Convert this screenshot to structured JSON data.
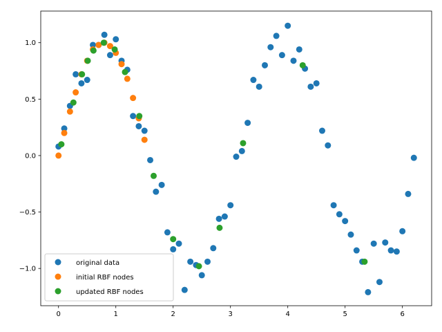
{
  "chart_data": {
    "type": "scatter",
    "title": "",
    "xlabel": "",
    "ylabel": "",
    "xlim": [
      -0.31,
      6.51
    ],
    "ylim": [
      -1.33,
      1.28
    ],
    "xticks": [
      0,
      1,
      2,
      3,
      4,
      5,
      6
    ],
    "xtick_labels": [
      "0",
      "1",
      "2",
      "3",
      "4",
      "5",
      "6"
    ],
    "yticks": [
      -1.0,
      -0.5,
      0.0,
      0.5,
      1.0
    ],
    "ytick_labels": [
      "−1.0",
      "−0.5",
      "0.0",
      "0.5",
      "1.0"
    ],
    "grid": false,
    "legend_position": "lower-left",
    "series": [
      {
        "name": "original data",
        "color": "#1f77b4",
        "points": [
          [
            0.0,
            0.08
          ],
          [
            0.1,
            0.24
          ],
          [
            0.2,
            0.44
          ],
          [
            0.3,
            0.72
          ],
          [
            0.4,
            0.64
          ],
          [
            0.5,
            0.67
          ],
          [
            0.6,
            0.98
          ],
          [
            0.7,
            0.98
          ],
          [
            0.8,
            1.07
          ],
          [
            0.9,
            0.89
          ],
          [
            1.0,
            1.03
          ],
          [
            1.1,
            0.84
          ],
          [
            1.2,
            0.76
          ],
          [
            1.3,
            0.35
          ],
          [
            1.4,
            0.26
          ],
          [
            1.5,
            0.22
          ],
          [
            1.6,
            -0.04
          ],
          [
            1.7,
            -0.32
          ],
          [
            1.8,
            -0.26
          ],
          [
            1.9,
            -0.68
          ],
          [
            2.0,
            -0.83
          ],
          [
            2.1,
            -0.78
          ],
          [
            2.2,
            -1.19
          ],
          [
            2.3,
            -0.94
          ],
          [
            2.4,
            -0.97
          ],
          [
            2.5,
            -1.06
          ],
          [
            2.6,
            -0.94
          ],
          [
            2.7,
            -0.82
          ],
          [
            2.8,
            -0.56
          ],
          [
            2.9,
            -0.54
          ],
          [
            3.0,
            -0.44
          ],
          [
            3.1,
            -0.01
          ],
          [
            3.2,
            0.04
          ],
          [
            3.3,
            0.29
          ],
          [
            3.4,
            0.67
          ],
          [
            3.5,
            0.61
          ],
          [
            3.6,
            0.8
          ],
          [
            3.7,
            0.96
          ],
          [
            3.8,
            1.06
          ],
          [
            3.9,
            0.89
          ],
          [
            4.0,
            1.15
          ],
          [
            4.1,
            0.84
          ],
          [
            4.2,
            0.94
          ],
          [
            4.3,
            0.77
          ],
          [
            4.4,
            0.61
          ],
          [
            4.5,
            0.64
          ],
          [
            4.6,
            0.22
          ],
          [
            4.7,
            0.09
          ],
          [
            4.8,
            -0.44
          ],
          [
            4.9,
            -0.52
          ],
          [
            5.0,
            -0.58
          ],
          [
            5.1,
            -0.7
          ],
          [
            5.2,
            -0.84
          ],
          [
            5.3,
            -0.94
          ],
          [
            5.4,
            -1.21
          ],
          [
            5.5,
            -0.78
          ],
          [
            5.6,
            -1.12
          ],
          [
            5.7,
            -0.77
          ],
          [
            5.8,
            -0.84
          ],
          [
            5.9,
            -0.85
          ],
          [
            6.0,
            -0.67
          ],
          [
            6.1,
            -0.34
          ],
          [
            6.2,
            -0.02
          ]
        ]
      },
      {
        "name": "initial RBF nodes",
        "color": "#ff7f0e",
        "points": [
          [
            0.0,
            0.0
          ],
          [
            0.1,
            0.2
          ],
          [
            0.2,
            0.39
          ],
          [
            0.3,
            0.56
          ],
          [
            0.4,
            0.72
          ],
          [
            0.5,
            0.84
          ],
          [
            0.6,
            0.94
          ],
          [
            0.7,
            0.98
          ],
          [
            0.8,
            1.0
          ],
          [
            0.9,
            0.97
          ],
          [
            1.0,
            0.91
          ],
          [
            1.1,
            0.81
          ],
          [
            1.2,
            0.68
          ],
          [
            1.3,
            0.51
          ],
          [
            1.4,
            0.33
          ],
          [
            1.5,
            0.14
          ]
        ]
      },
      {
        "name": "updated RBF nodes",
        "color": "#2ca02c",
        "points": [
          [
            0.05,
            0.1
          ],
          [
            0.26,
            0.47
          ],
          [
            0.41,
            0.72
          ],
          [
            0.51,
            0.84
          ],
          [
            0.61,
            0.93
          ],
          [
            0.79,
            1.0
          ],
          [
            0.98,
            0.94
          ],
          [
            1.16,
            0.74
          ],
          [
            1.41,
            0.35
          ],
          [
            1.66,
            -0.18
          ],
          [
            2.0,
            -0.74
          ],
          [
            2.45,
            -0.98
          ],
          [
            2.81,
            -0.64
          ],
          [
            3.22,
            0.11
          ],
          [
            4.26,
            0.8
          ],
          [
            5.34,
            -0.94
          ]
        ]
      }
    ]
  }
}
